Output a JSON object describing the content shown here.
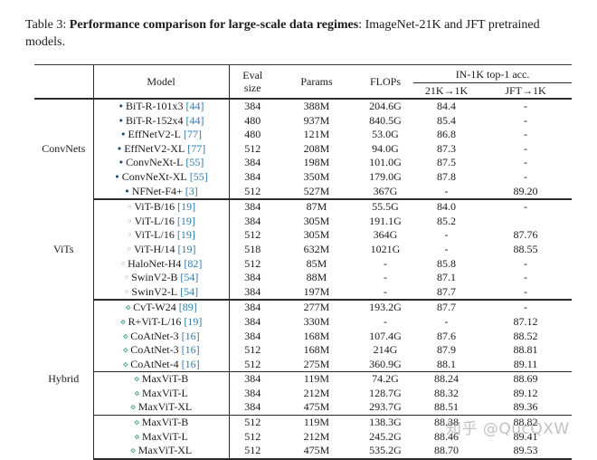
{
  "caption": {
    "label": "Table 3: ",
    "bold": "Performance comparison for large-scale data regimes",
    "rest": ": ImageNet-21K and JFT pretrained models."
  },
  "watermark": "知乎 @QucQXW",
  "colors": {
    "citation_link": "#2e7bab",
    "convnet_marker": "#1b4a74",
    "vit_marker": "#c4698f",
    "hybrid_marker": "#3f9c8c",
    "rule": "#2b2b2b",
    "watermark_gray": "#8f8f8f"
  },
  "table": {
    "headers": {
      "model": "Model",
      "eval_line1": "Eval",
      "eval_line2": "size",
      "params": "Params",
      "flops": "FLOPs",
      "acc_group": "IN-1K top-1 acc.",
      "acc_21k": "21K→1K",
      "acc_jft": "JFT→1K"
    },
    "sections": [
      {
        "group": "ConvNets",
        "marker": "•",
        "marker_icon": "filled-circle-icon",
        "marker_color": "#1b4a74",
        "subgroups": [
          [
            {
              "name": "BiT-R-101x3",
              "cite": "[44]",
              "eval": "384",
              "params": "388M",
              "flops": "204.6G",
              "acc21k": "84.4",
              "accjft": "-",
              "bold": false
            },
            {
              "name": "BiT-R-152x4",
              "cite": "[44]",
              "eval": "480",
              "params": "937M",
              "flops": "840.5G",
              "acc21k": "85.4",
              "accjft": "-",
              "bold": false
            },
            {
              "name": "EffNetV2-L",
              "cite": "[77]",
              "eval": "480",
              "params": "121M",
              "flops": "53.0G",
              "acc21k": "86.8",
              "accjft": "-",
              "bold": false
            },
            {
              "name": "EffNetV2-XL",
              "cite": "[77]",
              "eval": "512",
              "params": "208M",
              "flops": "94.0G",
              "acc21k": "87.3",
              "accjft": "-",
              "bold": false
            },
            {
              "name": "ConvNeXt-L",
              "cite": "[55]",
              "eval": "384",
              "params": "198M",
              "flops": "101.0G",
              "acc21k": "87.5",
              "accjft": "-",
              "bold": false
            },
            {
              "name": "ConvNeXt-XL",
              "cite": "[55]",
              "eval": "384",
              "params": "350M",
              "flops": "179.0G",
              "acc21k": "87.8",
              "accjft": "-",
              "bold": false
            },
            {
              "name": "NFNet-F4+",
              "cite": "[3]",
              "eval": "512",
              "params": "527M",
              "flops": "367G",
              "acc21k": "-",
              "accjft": "89.20",
              "bold": false
            }
          ]
        ]
      },
      {
        "group": "ViTs",
        "marker": "◦",
        "marker_icon": "open-circle-icon",
        "marker_color": "#c4698f",
        "subgroups": [
          [
            {
              "name": "ViT-B/16",
              "cite": "[19]",
              "eval": "384",
              "params": "87M",
              "flops": "55.5G",
              "acc21k": "84.0",
              "accjft": "-",
              "bold": false
            },
            {
              "name": "ViT-L/16",
              "cite": "[19]",
              "eval": "384",
              "params": "305M",
              "flops": "191.1G",
              "acc21k": "85.2",
              "accjft": "",
              "bold": false
            },
            {
              "name": "ViT-L/16",
              "cite": "[19]",
              "eval": "512",
              "params": "305M",
              "flops": "364G",
              "acc21k": "-",
              "accjft": "87.76",
              "bold": false
            },
            {
              "name": "ViT-H/14",
              "cite": "[19]",
              "eval": "518",
              "params": "632M",
              "flops": "1021G",
              "acc21k": "-",
              "accjft": "88.55",
              "bold": false
            },
            {
              "name": "HaloNet-H4",
              "cite": "[82]",
              "eval": "512",
              "params": "85M",
              "flops": "-",
              "acc21k": "85.8",
              "accjft": "-",
              "bold": false
            },
            {
              "name": "SwinV2-B",
              "cite": "[54]",
              "eval": "384",
              "params": "88M",
              "flops": "-",
              "acc21k": "87.1",
              "accjft": "-",
              "bold": false
            },
            {
              "name": "SwinV2-L",
              "cite": "[54]",
              "eval": "384",
              "params": "197M",
              "flops": "-",
              "acc21k": "87.7",
              "accjft": "-",
              "bold": false
            }
          ]
        ]
      },
      {
        "group": "Hybrid",
        "marker": "⋄",
        "marker_icon": "diamond-icon",
        "marker_color": "#3f9c8c",
        "subgroups": [
          [
            {
              "name": "CvT-W24",
              "cite": "[89]",
              "eval": "384",
              "params": "277M",
              "flops": "193.2G",
              "acc21k": "87.7",
              "accjft": "-",
              "bold": false
            },
            {
              "name": "R+ViT-L/16",
              "cite": "[19]",
              "eval": "384",
              "params": "330M",
              "flops": "-",
              "acc21k": "-",
              "accjft": "87.12",
              "bold": false
            },
            {
              "name": "CoAtNet-3",
              "cite": "[16]",
              "eval": "384",
              "params": "168M",
              "flops": "107.4G",
              "acc21k": "87.6",
              "accjft": "88.52",
              "bold": false
            },
            {
              "name": "CoAtNet-3",
              "cite": "[16]",
              "eval": "512",
              "params": "168M",
              "flops": "214G",
              "acc21k": "87.9",
              "accjft": "88.81",
              "bold": false
            },
            {
              "name": "CoAtNet-4",
              "cite": "[16]",
              "eval": "512",
              "params": "275M",
              "flops": "360.9G",
              "acc21k": "88.1",
              "accjft": "89.11",
              "bold": false
            }
          ],
          [
            {
              "name": "MaxViT-B",
              "cite": "",
              "eval": "384",
              "params": "119M",
              "flops": "74.2G",
              "acc21k": "88.24",
              "accjft": "88.69",
              "bold": false
            },
            {
              "name": "MaxViT-L",
              "cite": "",
              "eval": "384",
              "params": "212M",
              "flops": "128.7G",
              "acc21k": "88.32",
              "accjft": "89.12",
              "bold": false
            },
            {
              "name": "MaxViT-XL",
              "cite": "",
              "eval": "384",
              "params": "475M",
              "flops": "293.7G",
              "acc21k": "88.51",
              "accjft": "89.36",
              "bold": false
            }
          ],
          [
            {
              "name": "MaxViT-B",
              "cite": "",
              "eval": "512",
              "params": "119M",
              "flops": "138.3G",
              "acc21k": "88.38",
              "accjft": "88.82",
              "bold": false
            },
            {
              "name": "MaxViT-L",
              "cite": "",
              "eval": "512",
              "params": "212M",
              "flops": "245.2G",
              "acc21k": "88.46",
              "accjft": "89.41",
              "bold": false
            },
            {
              "name": "MaxViT-XL",
              "cite": "",
              "eval": "512",
              "params": "475M",
              "flops": "535.2G",
              "acc21k": "88.70",
              "accjft": "89.53",
              "bold": true
            }
          ]
        ]
      }
    ]
  }
}
